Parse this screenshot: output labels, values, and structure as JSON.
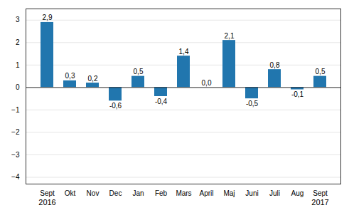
{
  "chart_data": {
    "type": "bar",
    "categories": [
      "Sept",
      "Okt",
      "Nov",
      "Dec",
      "Jan",
      "Feb",
      "Mars",
      "April",
      "Maj",
      "Juni",
      "Juli",
      "Aug",
      "Sept"
    ],
    "values": [
      2.9,
      0.3,
      0.2,
      -0.6,
      0.5,
      -0.4,
      1.4,
      0.0,
      2.1,
      -0.5,
      0.8,
      -0.1,
      0.5
    ],
    "value_labels": [
      "2,9",
      "0,3",
      "0,2",
      "-0,6",
      "0,5",
      "-0,4",
      "1,4",
      "0,0",
      "2,1",
      "-0,5",
      "0,8",
      "-0,1",
      "0,5"
    ],
    "data_labels": true,
    "color": "#2176ae",
    "ylim": [
      -4.3,
      3.5
    ],
    "yticks": [
      -4,
      -3,
      -2,
      -1,
      0,
      1,
      2,
      3
    ],
    "grid": true,
    "annotations": [
      {
        "text": "2016",
        "x": 0
      },
      {
        "text": "2017",
        "x": 12
      }
    ]
  }
}
